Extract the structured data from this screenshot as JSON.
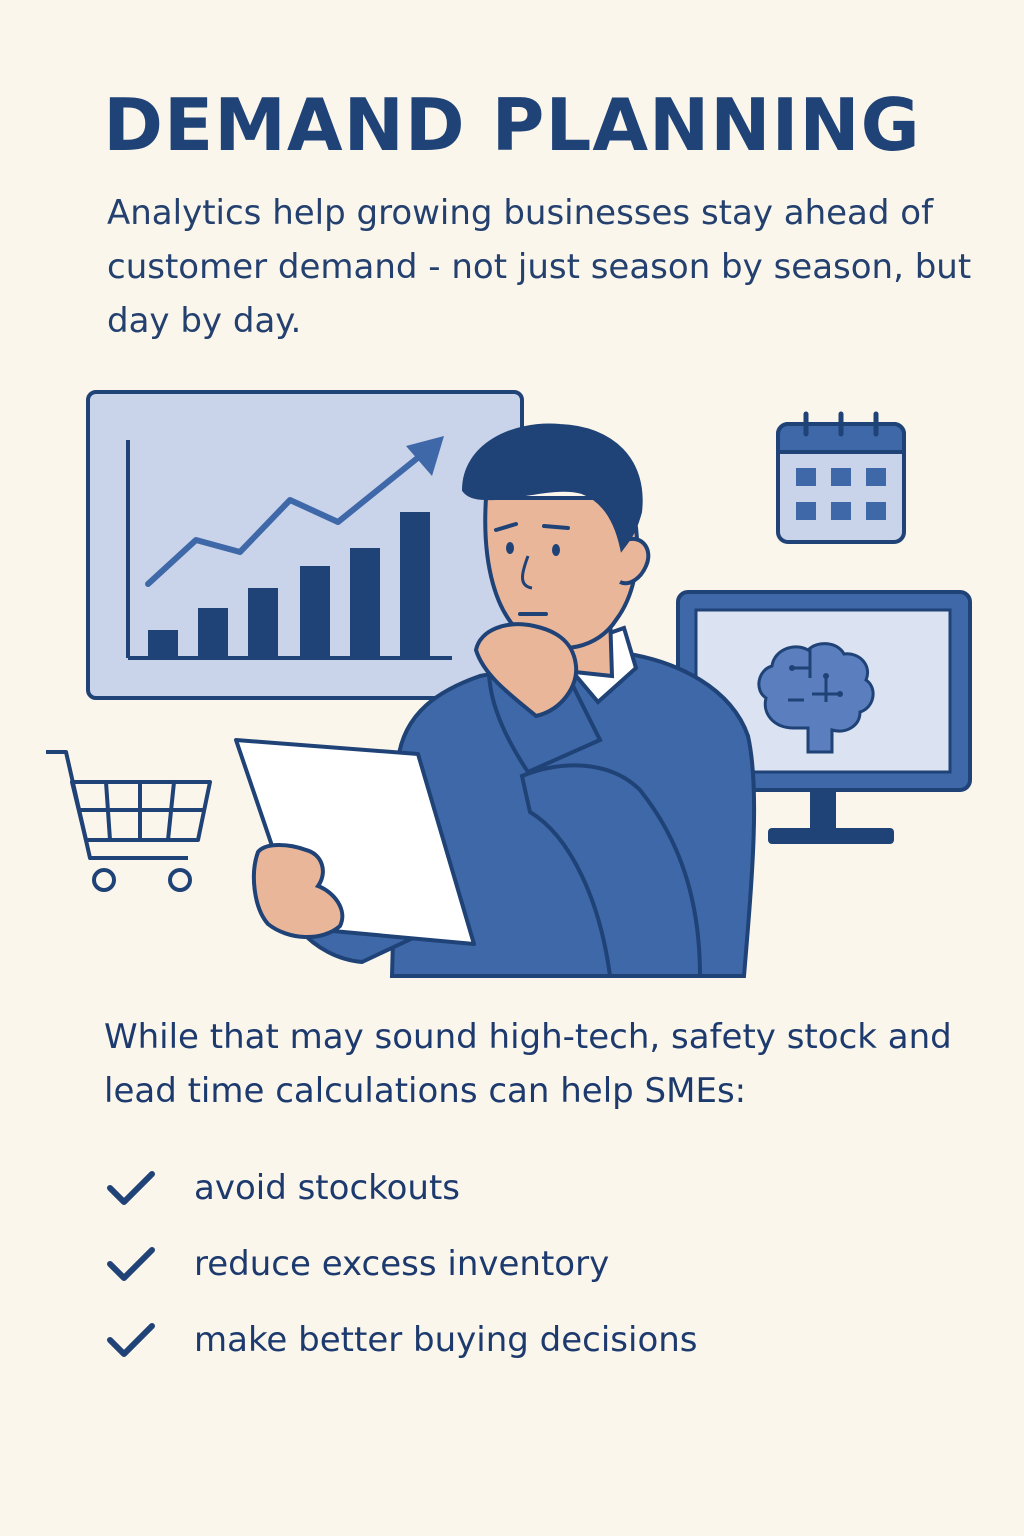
{
  "title": "DEMAND PLANNING",
  "intro": "Analytics help growing businesses stay ahead of customer demand - not just season by season, but day by day.",
  "illustration": {
    "icons": [
      "bar-chart-icon",
      "trend-arrow-icon",
      "calendar-icon",
      "brain-monitor-icon",
      "shopping-cart-icon",
      "thinking-person",
      "paper-sheet"
    ],
    "colors": {
      "navy": "#1f4277",
      "blue": "#3f68a8",
      "light_blue": "#c9d3ea",
      "skin": "#eab699",
      "background": "#fbf6ec",
      "white": "#ffffff"
    }
  },
  "lead": "While that may sound high-tech, safety stock and lead time calculations can help SMEs:",
  "checklist": [
    {
      "text": "avoid stockouts",
      "icon": "check-icon"
    },
    {
      "text": "reduce excess inventory",
      "icon": "check-icon"
    },
    {
      "text": "make better buying decisions",
      "icon": "check-icon"
    }
  ]
}
